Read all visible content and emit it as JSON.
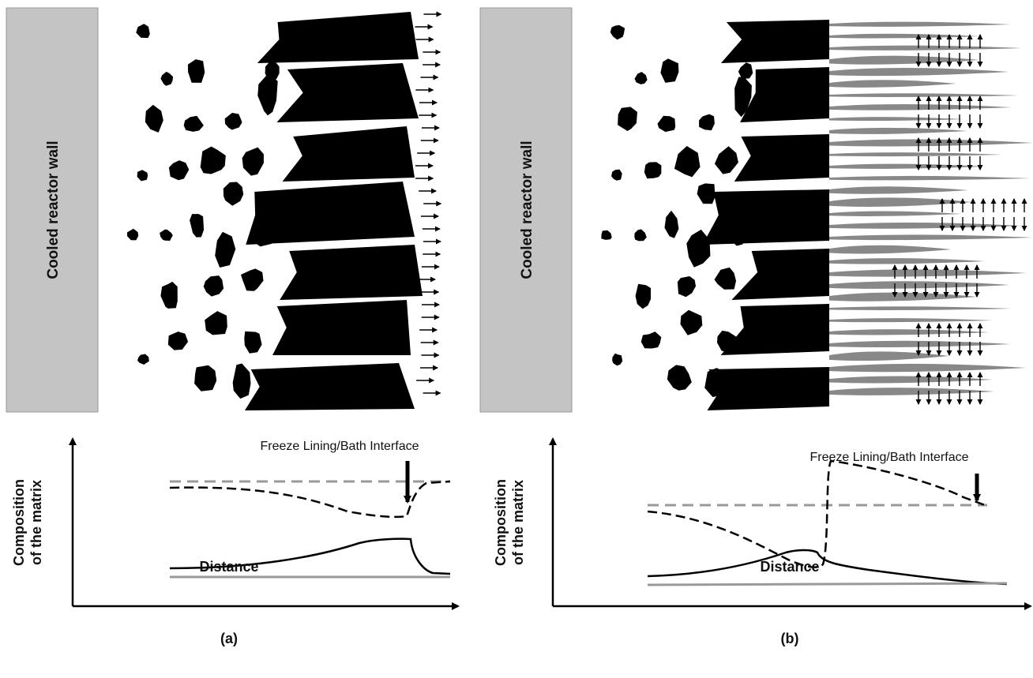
{
  "panels": [
    {
      "wall_label": "Cooled reactor wall",
      "y_axis_label": [
        "Composition",
        "of the matrix"
      ],
      "x_axis_label": "Distance",
      "interface_label": "Freeze Lining/Bath Interface",
      "caption": "(a)"
    },
    {
      "wall_label": "Cooled reactor wall",
      "y_axis_label": [
        "Composition",
        "of the matrix"
      ],
      "x_axis_label": "Distance",
      "interface_label": "Freeze Lining/Bath Interface",
      "caption": "(b)"
    }
  ]
}
